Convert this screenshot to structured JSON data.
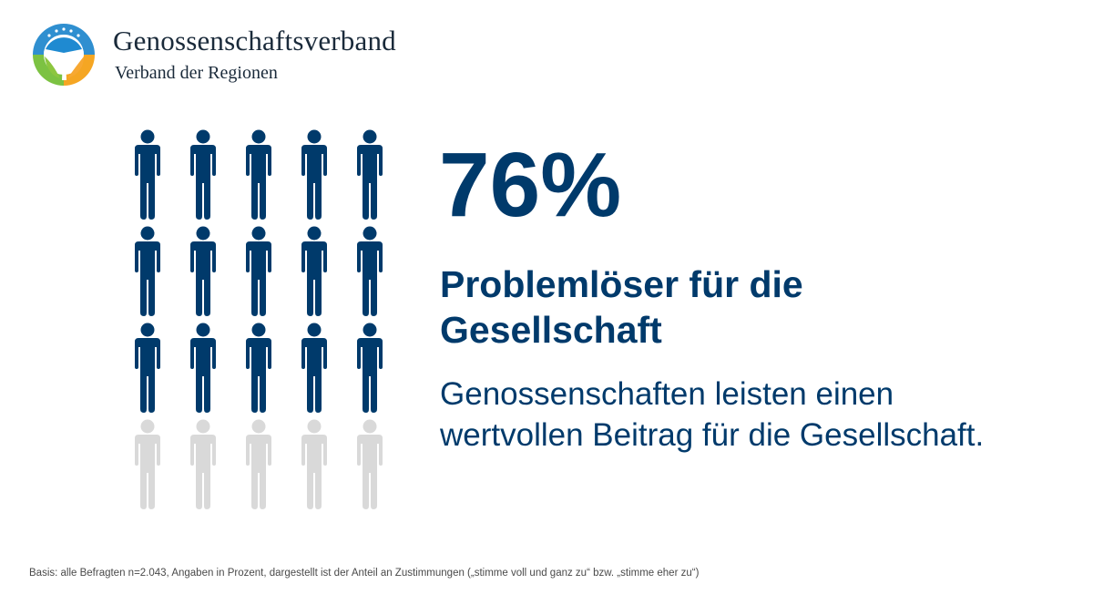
{
  "header": {
    "org_name": "Genossenschaftsverband",
    "org_subtitle": "Verband der Regionen",
    "logo_icon": "genossenschaftsverband-logo-icon"
  },
  "colors": {
    "filled": "#003a6b",
    "empty": "#d9d9d9",
    "text": "#003a6b"
  },
  "chart_data": {
    "type": "pictogram",
    "icon": "person-icon",
    "percentage": 76,
    "total_icons": 20,
    "filled_icons": 15,
    "columns": 5,
    "rows": 4
  },
  "main": {
    "percent_label": "76%",
    "headline": "Problemlöser für die Gesellschaft",
    "subtext": "Genossenschaften leisten einen wertvollen Beitrag für die Gesellschaft."
  },
  "footer": {
    "footnote": "Basis: alle Befragten n=2.043, Angaben in Prozent, dargestellt ist der Anteil an Zustimmungen („stimme voll und ganz zu“ bzw. „stimme eher zu“)"
  }
}
